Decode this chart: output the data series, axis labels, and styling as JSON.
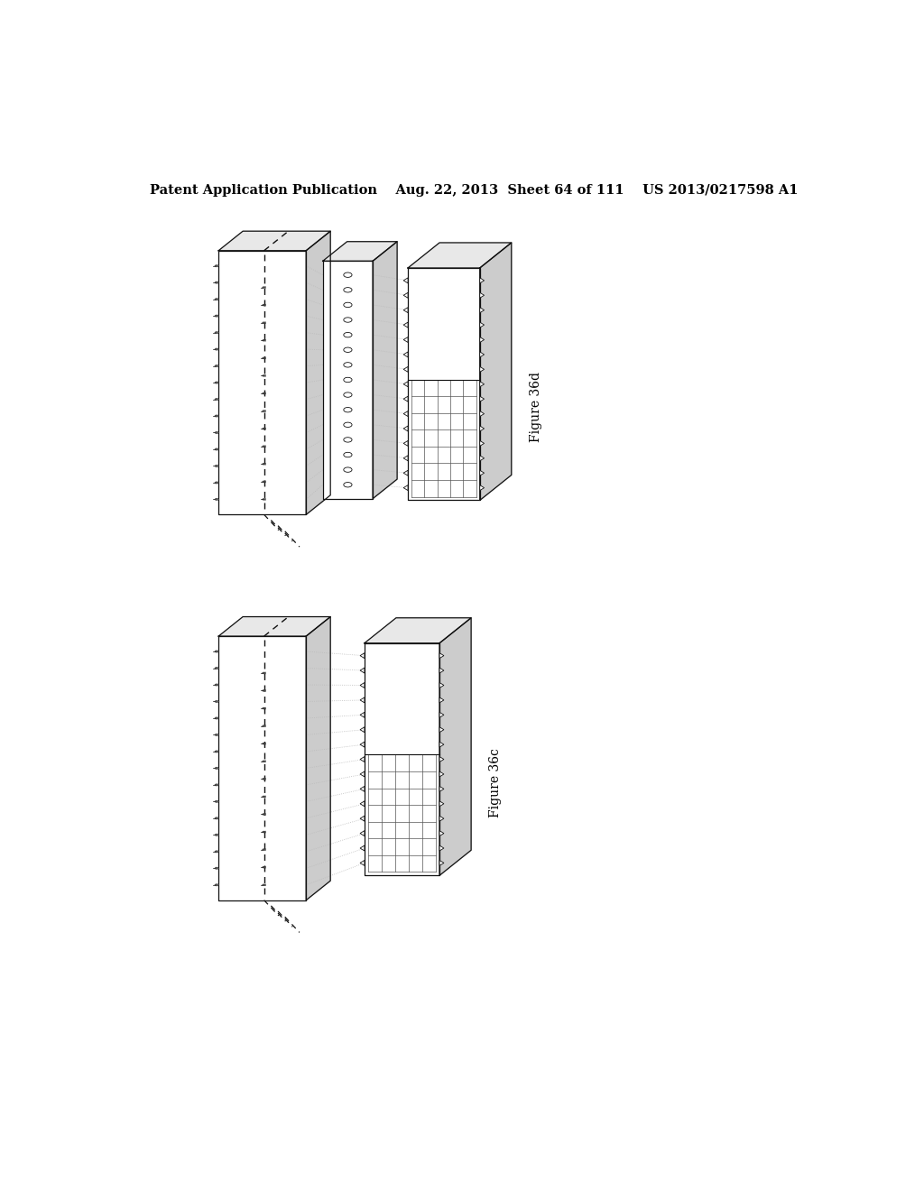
{
  "bg_color": "#ffffff",
  "header_text": "Patent Application Publication    Aug. 22, 2013  Sheet 64 of 111    US 2013/0217598 A1",
  "header_fontsize": 10.5,
  "fig36d_label": "Figure 36d",
  "fig36c_label": "Figure 36c",
  "line_color": "#111111",
  "dashed_color": "#111111",
  "dotted_color": "#bbbbbb",
  "grid_color": "#555555",
  "top_face_color": "#e8e8e8",
  "side_face_color": "#cccccc",
  "front_face_color": "#ffffff",
  "n_rows": 15
}
